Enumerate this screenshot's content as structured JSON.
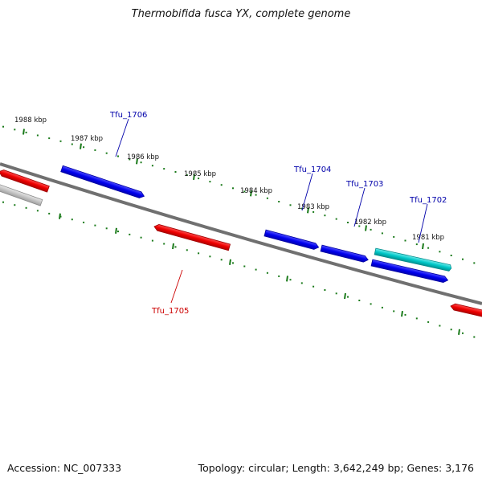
{
  "title": "Thermobifida fusca YX, complete genome",
  "footer": {
    "accession": "Accession: NC_007333",
    "summary": "Topology: circular; Length: 3,642,249 bp; Genes: 3,176"
  },
  "colors": {
    "forward_gene": "#0000ee",
    "reverse_gene": "#ee0000",
    "rna_gene": "#00c8c8",
    "other_gene": "#c0c0c0",
    "backbone": "#777777",
    "tick": "#1a7a1a",
    "forward_label": "#0000aa",
    "reverse_label": "#cc0000"
  },
  "kbp_ticks": [
    "1988 kbp",
    "1987 kbp",
    "1986 kbp",
    "1985 kbp",
    "1984 kbp",
    "1983 kbp",
    "1982 kbp",
    "1981 kbp"
  ],
  "genes": [
    {
      "label": "Tfu_1706",
      "strand": "forward"
    },
    {
      "label": "Tfu_1705",
      "strand": "reverse"
    },
    {
      "label": "Tfu_1704",
      "strand": "forward"
    },
    {
      "label": "Tfu_1703",
      "strand": "forward"
    },
    {
      "label": "Tfu_1702",
      "strand": "forward"
    }
  ]
}
